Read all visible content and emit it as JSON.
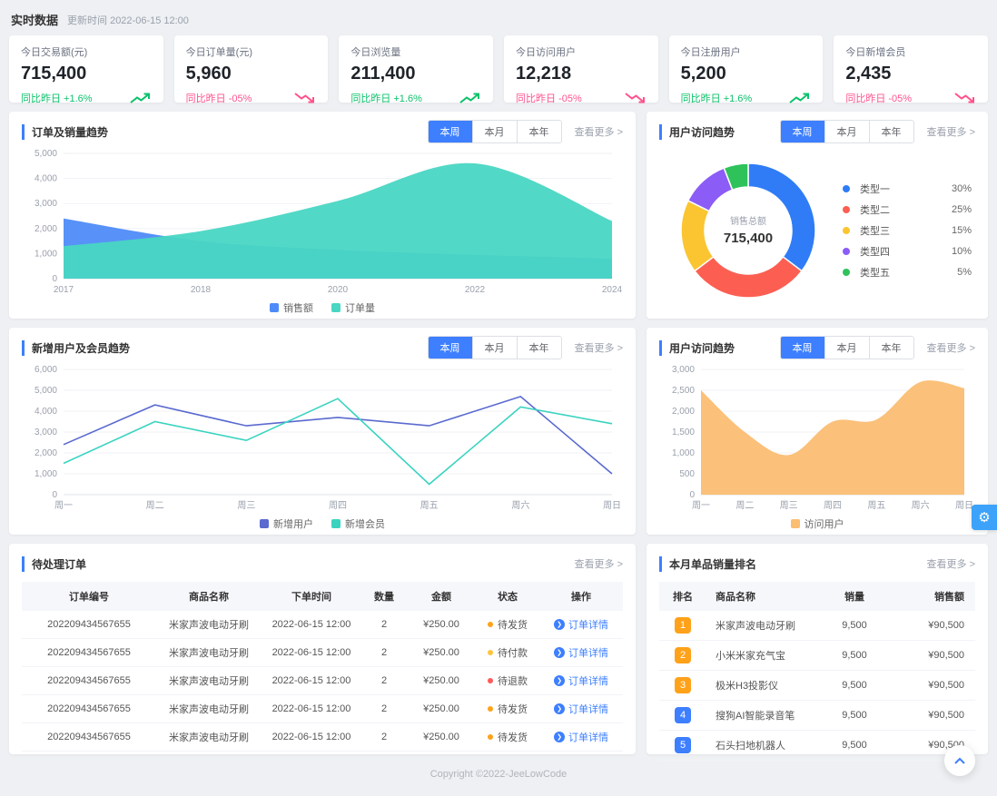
{
  "colors": {
    "accent": "#3d7fff",
    "up": "#0bc26b",
    "down": "#ff538c",
    "rank_top3": "#ffa21a",
    "rank_other": "#3d7fff"
  },
  "header": {
    "title": "实时数据",
    "updated": "更新时间 2022-06-15 12:00"
  },
  "tabs": {
    "labels": [
      "本周",
      "本月",
      "本年"
    ],
    "active": 0
  },
  "common": {
    "more": "查看更多 >"
  },
  "stats": [
    {
      "label": "今日交易额(元)",
      "value": "715,400",
      "delta": "同比昨日 +1.6%",
      "trend": "up"
    },
    {
      "label": "今日订单量(元)",
      "value": "5,960",
      "delta": "同比昨日 -05%",
      "trend": "down"
    },
    {
      "label": "今日浏览量",
      "value": "211,400",
      "delta": "同比昨日 +1.6%",
      "trend": "up"
    },
    {
      "label": "今日访问用户",
      "value": "12,218",
      "delta": "同比昨日 -05%",
      "trend": "down"
    },
    {
      "label": "今日注册用户",
      "value": "5,200",
      "delta": "同比昨日 +1.6%",
      "trend": "up"
    },
    {
      "label": "今日新增会员",
      "value": "2,435",
      "delta": "同比昨日 -05%",
      "trend": "down"
    }
  ],
  "panels": {
    "sales_trend": {
      "title": "订单及销量趋势"
    },
    "visit_share": {
      "title": "用户访问趋势"
    },
    "new_users": {
      "title": "新增用户及会员趋势"
    },
    "visit_trend": {
      "title": "用户访问趋势"
    },
    "pending_orders": {
      "title": "待处理订单"
    },
    "ranking": {
      "title": "本月单品销量排名"
    }
  },
  "chart_data": [
    {
      "type": "area",
      "title": "订单及销量趋势",
      "smooth": true,
      "categories": [
        "2017",
        "2018",
        "2020",
        "2022",
        "2024"
      ],
      "ylim": [
        0,
        5000
      ],
      "ystep": 1000,
      "grid": true,
      "legend_position": "bottom",
      "series": [
        {
          "name": "销售额",
          "color": "#4f8bf8",
          "opacity": 0.95,
          "values": [
            2400,
            1500,
            1150,
            950,
            800
          ]
        },
        {
          "name": "订单量",
          "color": "#49d6c3",
          "opacity": 0.95,
          "values": [
            1300,
            1900,
            3100,
            4600,
            2300
          ]
        }
      ]
    },
    {
      "type": "pie",
      "title": "用户访问趋势",
      "labels": [
        "类型一",
        "类型二",
        "类型三",
        "类型四",
        "类型五"
      ],
      "values": [
        30,
        25,
        15,
        10,
        5
      ],
      "unit": "%",
      "colors": [
        "#2f7cf6",
        "#fc5f52",
        "#fbc531",
        "#8b5cf6",
        "#2fc25b"
      ],
      "center_label": "销售总额",
      "center_value": "715,400",
      "legend_position": "right"
    },
    {
      "type": "line",
      "title": "新增用户及会员趋势",
      "smooth": false,
      "categories": [
        "周一",
        "周二",
        "周三",
        "周四",
        "周五",
        "周六",
        "周日"
      ],
      "ylim": [
        0,
        6000
      ],
      "ystep": 1000,
      "grid": true,
      "legend_position": "bottom",
      "series": [
        {
          "name": "新增用户",
          "color": "#5a6acf",
          "values": [
            2400,
            4300,
            3300,
            3700,
            3300,
            4700,
            1000
          ]
        },
        {
          "name": "新增会员",
          "color": "#3bd3c0",
          "values": [
            1500,
            3500,
            2600,
            4600,
            500,
            4200,
            3400
          ]
        }
      ]
    },
    {
      "type": "area",
      "title": "用户访问趋势",
      "smooth": true,
      "categories": [
        "周一",
        "周二",
        "周三",
        "周四",
        "周五",
        "周六",
        "周日"
      ],
      "ylim": [
        0,
        3000
      ],
      "ystep": 500,
      "grid": true,
      "legend_position": "bottom",
      "series": [
        {
          "name": "访问用户",
          "color": "#fbbd72",
          "opacity": 0.95,
          "values": [
            2500,
            1500,
            950,
            1750,
            1800,
            2700,
            2550
          ]
        }
      ]
    }
  ],
  "orders": {
    "columns": [
      "订单编号",
      "商品名称",
      "下单时间",
      "数量",
      "金额",
      "状态",
      "操作"
    ],
    "action_label": "订单详情",
    "rows": [
      {
        "id": "202209434567655",
        "name": "米家声波电动牙刷",
        "time": "2022-06-15 12:00",
        "qty": "2",
        "amount": "¥250.00",
        "status": "待发货",
        "status_color": "#ffa21a"
      },
      {
        "id": "202209434567655",
        "name": "米家声波电动牙刷",
        "time": "2022-06-15 12:00",
        "qty": "2",
        "amount": "¥250.00",
        "status": "待付款",
        "status_color": "#ffc53d"
      },
      {
        "id": "202209434567655",
        "name": "米家声波电动牙刷",
        "time": "2022-06-15 12:00",
        "qty": "2",
        "amount": "¥250.00",
        "status": "待退款",
        "status_color": "#ff5b5b"
      },
      {
        "id": "202209434567655",
        "name": "米家声波电动牙刷",
        "time": "2022-06-15 12:00",
        "qty": "2",
        "amount": "¥250.00",
        "status": "待发货",
        "status_color": "#ffa21a"
      },
      {
        "id": "202209434567655",
        "name": "米家声波电动牙刷",
        "time": "2022-06-15 12:00",
        "qty": "2",
        "amount": "¥250.00",
        "status": "待发货",
        "status_color": "#ffa21a"
      }
    ]
  },
  "ranking": {
    "columns": [
      "排名",
      "商品名称",
      "销量",
      "销售额"
    ],
    "rows": [
      {
        "rank": "1",
        "name": "米家声波电动牙刷",
        "sales": "9,500",
        "amount": "¥90,500"
      },
      {
        "rank": "2",
        "name": "小米米家充气宝",
        "sales": "9,500",
        "amount": "¥90,500"
      },
      {
        "rank": "3",
        "name": "极米H3投影仪",
        "sales": "9,500",
        "amount": "¥90,500"
      },
      {
        "rank": "4",
        "name": "搜狗AI智能录音笔",
        "sales": "9,500",
        "amount": "¥90,500"
      },
      {
        "rank": "5",
        "name": "石头扫地机器人",
        "sales": "9,500",
        "amount": "¥90,500"
      }
    ]
  },
  "icons": {
    "gear": "⚙",
    "detail_arrow": "❯"
  },
  "footer": {
    "copyright": "Copyright ©2022-JeeLowCode"
  }
}
